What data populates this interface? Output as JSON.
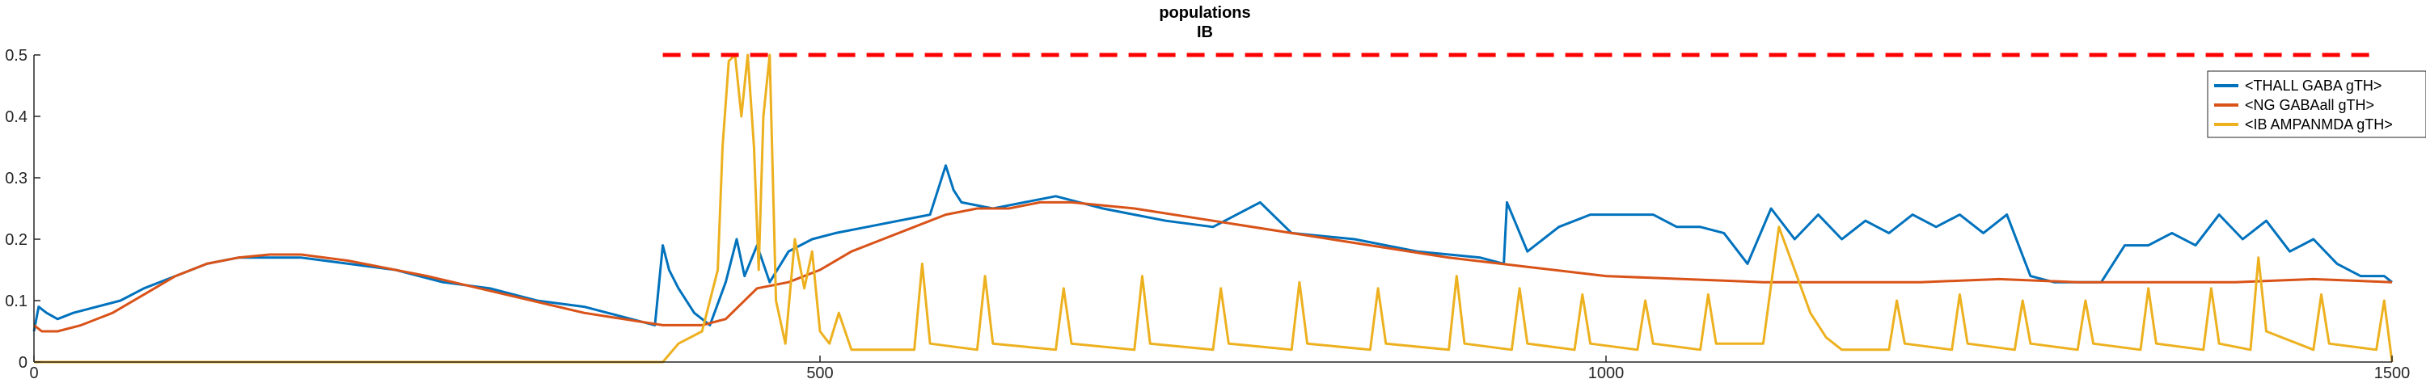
{
  "chart_data": {
    "type": "line",
    "title": "populations",
    "subtitle": "IB",
    "xlim": [
      0,
      1500
    ],
    "ylim": [
      0,
      0.5
    ],
    "xticks": [
      "0",
      "500",
      "1000",
      "1500"
    ],
    "yticks": [
      "0",
      "0.1",
      "0.2",
      "0.3",
      "0.4",
      "0.5"
    ],
    "legend_position": "top-right",
    "reference_line": {
      "y": 0.5,
      "x_from": 400,
      "x_to": 1490,
      "color": "#ff0000",
      "style": "dashed"
    },
    "series": [
      {
        "name": "<THALL GABA gTH>",
        "color": "#0072bd",
        "x": [
          0,
          3,
          8,
          15,
          25,
          40,
          55,
          70,
          90,
          110,
          130,
          150,
          170,
          200,
          230,
          260,
          290,
          320,
          350,
          380,
          395,
          400,
          404,
          410,
          420,
          430,
          440,
          447,
          452,
          460,
          468,
          480,
          495,
          510,
          530,
          550,
          570,
          580,
          585,
          590,
          610,
          630,
          650,
          680,
          700,
          720,
          750,
          780,
          800,
          840,
          880,
          920,
          935,
          937,
          950,
          970,
          990,
          1015,
          1030,
          1045,
          1060,
          1075,
          1090,
          1105,
          1120,
          1135,
          1150,
          1165,
          1180,
          1195,
          1210,
          1225,
          1240,
          1255,
          1270,
          1285,
          1300,
          1315,
          1330,
          1345,
          1360,
          1375,
          1390,
          1405,
          1420,
          1435,
          1450,
          1465,
          1480,
          1495,
          1500
        ],
        "values": [
          0.05,
          0.09,
          0.08,
          0.07,
          0.08,
          0.09,
          0.1,
          0.12,
          0.14,
          0.16,
          0.17,
          0.17,
          0.17,
          0.16,
          0.15,
          0.13,
          0.12,
          0.1,
          0.09,
          0.07,
          0.06,
          0.19,
          0.15,
          0.12,
          0.08,
          0.06,
          0.13,
          0.2,
          0.14,
          0.19,
          0.13,
          0.18,
          0.2,
          0.21,
          0.22,
          0.23,
          0.24,
          0.32,
          0.28,
          0.26,
          0.25,
          0.26,
          0.27,
          0.25,
          0.24,
          0.23,
          0.22,
          0.26,
          0.21,
          0.2,
          0.18,
          0.17,
          0.16,
          0.26,
          0.18,
          0.22,
          0.24,
          0.24,
          0.24,
          0.22,
          0.22,
          0.21,
          0.16,
          0.25,
          0.2,
          0.24,
          0.2,
          0.23,
          0.21,
          0.24,
          0.22,
          0.24,
          0.21,
          0.24,
          0.14,
          0.13,
          0.13,
          0.13,
          0.19,
          0.19,
          0.21,
          0.19,
          0.24,
          0.2,
          0.23,
          0.18,
          0.2,
          0.16,
          0.14,
          0.14,
          0.13
        ]
      },
      {
        "name": "<NG GABAall gTH>",
        "color": "#d95319",
        "x": [
          0,
          5,
          15,
          30,
          50,
          70,
          90,
          110,
          130,
          150,
          170,
          200,
          250,
          300,
          350,
          400,
          425,
          440,
          460,
          480,
          500,
          520,
          540,
          560,
          580,
          600,
          620,
          640,
          660,
          700,
          750,
          800,
          850,
          900,
          950,
          1000,
          1050,
          1100,
          1150,
          1200,
          1250,
          1300,
          1350,
          1400,
          1450,
          1500
        ],
        "values": [
          0.06,
          0.05,
          0.05,
          0.06,
          0.08,
          0.11,
          0.14,
          0.16,
          0.17,
          0.175,
          0.175,
          0.165,
          0.14,
          0.11,
          0.08,
          0.06,
          0.06,
          0.07,
          0.12,
          0.13,
          0.15,
          0.18,
          0.2,
          0.22,
          0.24,
          0.25,
          0.25,
          0.26,
          0.26,
          0.25,
          0.23,
          0.21,
          0.19,
          0.17,
          0.155,
          0.14,
          0.135,
          0.13,
          0.13,
          0.13,
          0.135,
          0.13,
          0.13,
          0.13,
          0.135,
          0.13
        ]
      },
      {
        "name": "<IB AMPANMDA gTH>",
        "color": "#edb120",
        "x": [
          0,
          400,
          410,
          425,
          435,
          438,
          442,
          446,
          450,
          454,
          458,
          461,
          464,
          468,
          472,
          478,
          484,
          490,
          495,
          500,
          506,
          512,
          520,
          560,
          565,
          570,
          600,
          605,
          610,
          650,
          655,
          660,
          700,
          705,
          710,
          750,
          755,
          760,
          800,
          805,
          810,
          850,
          855,
          860,
          900,
          905,
          910,
          940,
          945,
          950,
          980,
          985,
          990,
          1020,
          1025,
          1030,
          1060,
          1065,
          1070,
          1100,
          1110,
          1120,
          1130,
          1140,
          1150,
          1180,
          1185,
          1190,
          1220,
          1225,
          1230,
          1260,
          1265,
          1270,
          1300,
          1305,
          1310,
          1340,
          1345,
          1350,
          1380,
          1385,
          1390,
          1410,
          1415,
          1420,
          1450,
          1455,
          1460,
          1490,
          1495,
          1500
        ],
        "values": [
          0,
          0,
          0.03,
          0.05,
          0.15,
          0.35,
          0.49,
          0.5,
          0.4,
          0.5,
          0.35,
          0.15,
          0.4,
          0.5,
          0.1,
          0.03,
          0.2,
          0.12,
          0.18,
          0.05,
          0.03,
          0.08,
          0.02,
          0.02,
          0.16,
          0.03,
          0.02,
          0.14,
          0.03,
          0.02,
          0.12,
          0.03,
          0.02,
          0.14,
          0.03,
          0.02,
          0.12,
          0.03,
          0.02,
          0.13,
          0.03,
          0.02,
          0.12,
          0.03,
          0.02,
          0.14,
          0.03,
          0.02,
          0.12,
          0.03,
          0.02,
          0.11,
          0.03,
          0.02,
          0.1,
          0.03,
          0.02,
          0.11,
          0.03,
          0.03,
          0.22,
          0.15,
          0.08,
          0.04,
          0.02,
          0.02,
          0.1,
          0.03,
          0.02,
          0.11,
          0.03,
          0.02,
          0.1,
          0.03,
          0.02,
          0.1,
          0.03,
          0.02,
          0.12,
          0.03,
          0.02,
          0.12,
          0.03,
          0.02,
          0.17,
          0.05,
          0.02,
          0.11,
          0.03,
          0.02,
          0.1,
          0.0
        ]
      }
    ]
  }
}
